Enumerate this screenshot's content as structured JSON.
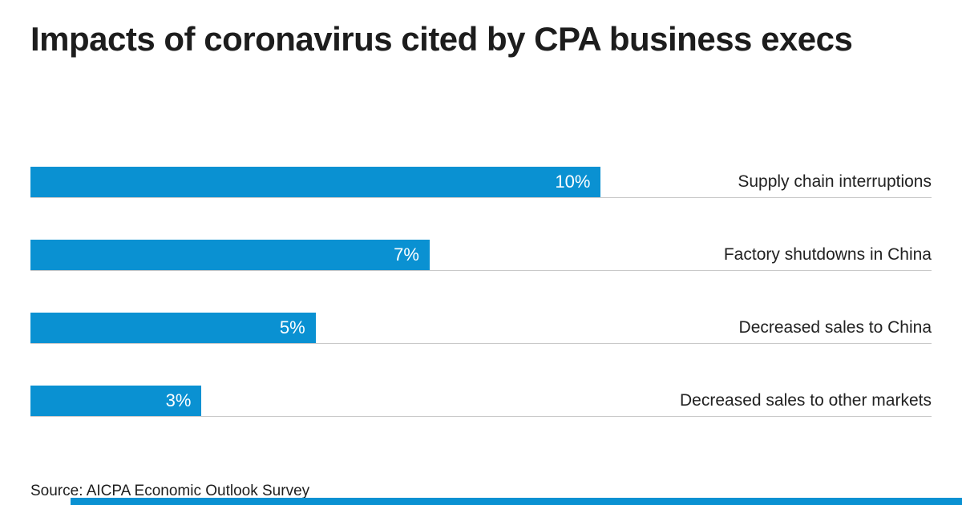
{
  "title": "Impacts of coronavirus cited by CPA business execs",
  "source": "Source: AICPA Economic Outlook Survey",
  "colors": {
    "bar": "#0a91d2",
    "accent_strip": "#0a91d2",
    "text": "#1d1d1d",
    "baseline": "#c9c9c9",
    "value_label": "#ffffff"
  },
  "chart_data": {
    "type": "bar",
    "orientation": "horizontal",
    "title": "Impacts of coronavirus cited by CPA business execs",
    "categories": [
      "Supply chain interruptions",
      "Factory shutdowns in China",
      "Decreased sales to China",
      "Decreased sales to other markets"
    ],
    "values": [
      10,
      7,
      5,
      3
    ],
    "value_labels": [
      "10%",
      "7%",
      "5%",
      "3%"
    ],
    "xlabel": "",
    "ylabel": "",
    "xlim": [
      0,
      15.8
    ],
    "grid": false,
    "legend": "none",
    "value_label_position": "inside-end",
    "category_label_position": "right"
  }
}
